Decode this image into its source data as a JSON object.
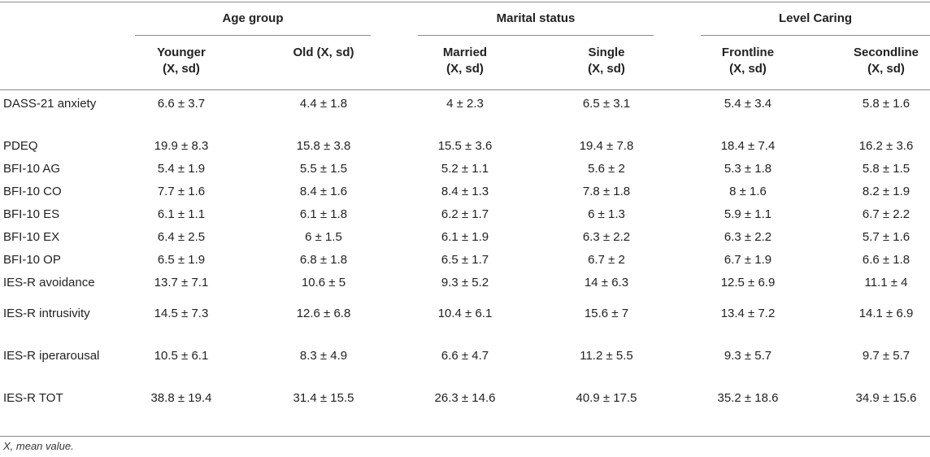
{
  "table": {
    "groups": [
      {
        "title": "Age group",
        "subs": [
          "Younger\n(X, sd)",
          "Old (X, sd)"
        ]
      },
      {
        "title": "Marital status",
        "subs": [
          "Married\n(X, sd)",
          "Single\n(X, sd)"
        ]
      },
      {
        "title": "Level Caring",
        "subs": [
          "Frontline\n(X, sd)",
          "Secondline\n(X, sd)"
        ]
      }
    ],
    "rows": [
      {
        "label": "DASS-21 anxiety",
        "values": [
          "6.6 ± 3.7",
          "4.4 ± 1.8",
          "4 ± 2.3",
          "6.5 ± 3.1",
          "5.4 ± 3.4",
          "5.8 ± 1.6"
        ]
      },
      {
        "label": "PDEQ",
        "values": [
          "19.9 ± 8.3",
          "15.8 ± 3.8",
          "15.5 ± 3.6",
          "19.4 ± 7.8",
          "18.4 ± 7.4",
          "16.2 ± 3.6"
        ]
      },
      {
        "label": "BFI-10 AG",
        "values": [
          "5.4 ± 1.9",
          "5.5 ± 1.5",
          "5.2 ± 1.1",
          "5.6 ± 2",
          "5.3 ± 1.8",
          "5.8 ± 1.5"
        ]
      },
      {
        "label": "BFI-10 CO",
        "values": [
          "7.7 ± 1.6",
          "8.4 ± 1.6",
          "8.4 ± 1.3",
          "7.8 ± 1.8",
          "8 ± 1.6",
          "8.2 ± 1.9"
        ]
      },
      {
        "label": "BFI-10 ES",
        "values": [
          "6.1 ± 1.1",
          "6.1 ± 1.8",
          "6.2 ± 1.7",
          "6 ± 1.3",
          "5.9 ± 1.1",
          "6.7 ± 2.2"
        ]
      },
      {
        "label": "BFI-10 EX",
        "values": [
          "6.4 ± 2.5",
          "6 ± 1.5",
          "6.1 ± 1.9",
          "6.3 ± 2.2",
          "6.3 ± 2.2",
          "5.7 ± 1.6"
        ]
      },
      {
        "label": "BFI-10 OP",
        "values": [
          "6.5 ± 1.9",
          "6.8 ± 1.8",
          "6.5 ± 1.7",
          "6.7 ± 2",
          "6.7 ± 1.9",
          "6.6 ± 1.8"
        ]
      },
      {
        "label": "IES-R avoidance",
        "values": [
          "13.7 ± 7.1",
          "10.6 ± 5",
          "9.3 ± 5.2",
          "14 ± 6.3",
          "12.5 ± 6.9",
          "11.1 ± 4"
        ]
      },
      {
        "label": "IES-R intrusivity",
        "values": [
          "14.5 ± 7.3",
          "12.6 ± 6.8",
          "10.4 ± 6.1",
          "15.6 ± 7",
          "13.4 ± 7.2",
          "14.1 ± 6.9"
        ]
      },
      {
        "label": "IES-R iperarousal",
        "values": [
          "10.5 ± 6.1",
          "8.3 ± 4.9",
          "6.6 ± 4.7",
          "11.2 ± 5.5",
          "9.3 ± 5.7",
          "9.7 ± 5.7"
        ]
      },
      {
        "label": "IES-R TOT",
        "values": [
          "38.8 ± 19.4",
          "31.4 ± 15.5",
          "26.3 ± 14.6",
          "40.9 ± 17.5",
          "35.2 ± 18.6",
          "34.9 ± 15.6"
        ]
      }
    ],
    "footnote": "X, mean value."
  }
}
